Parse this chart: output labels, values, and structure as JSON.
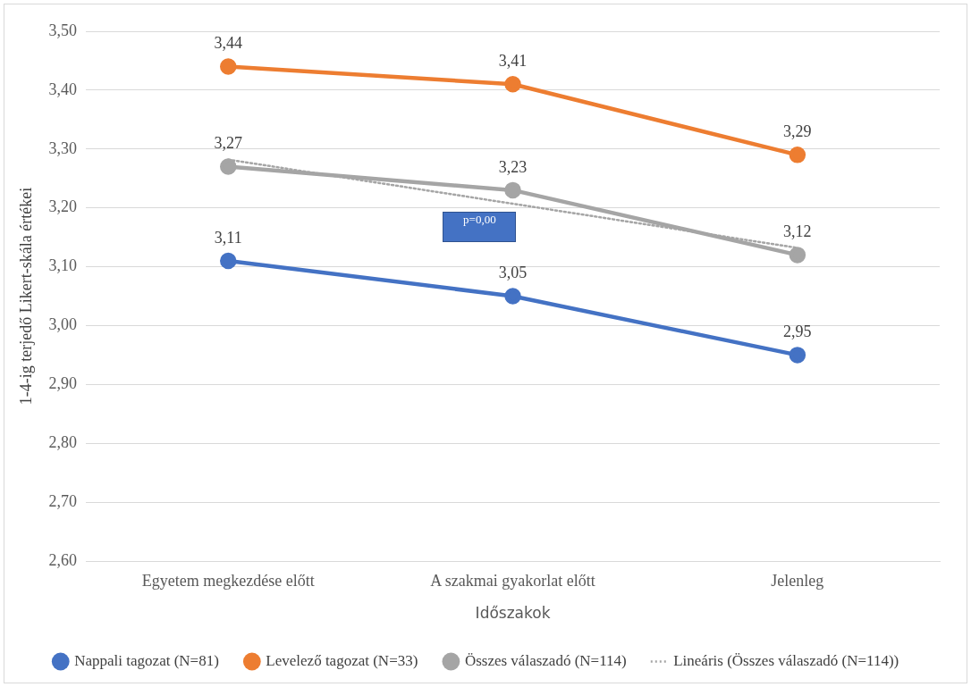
{
  "chart_data": {
    "type": "line",
    "xlabel": "Időszakok",
    "ylabel": "1-4-ig terjedő Likert-skála értékei",
    "categories": [
      "Egyetem megkezdése előtt",
      "A szakmai gyakorlat előtt",
      "Jelenleg"
    ],
    "series": [
      {
        "name": "Nappali tagozat (N=81)",
        "color": "#4472c4",
        "values": [
          3.11,
          3.05,
          2.95
        ],
        "value_labels": [
          "3,11",
          "3,05",
          "2,95"
        ],
        "marker": "circle",
        "line_style": "solid"
      },
      {
        "name": "Levelező tagozat (N=33)",
        "color": "#ed7d31",
        "values": [
          3.44,
          3.41,
          3.29
        ],
        "value_labels": [
          "3,44",
          "3,41",
          "3,29"
        ],
        "marker": "circle",
        "line_style": "solid"
      },
      {
        "name": "Összes válaszadó (N=114)",
        "color": "#a5a5a5",
        "values": [
          3.27,
          3.23,
          3.12
        ],
        "value_labels": [
          "3,27",
          "3,23",
          "3,12"
        ],
        "marker": "circle",
        "line_style": "solid"
      },
      {
        "name": "Lineáris (Összes válaszadó (N=114))",
        "color": "#a5a5a5",
        "values": [
          3.282,
          3.207,
          3.132
        ],
        "marker": "none",
        "line_style": "dotted"
      }
    ],
    "ylim": [
      2.6,
      3.5
    ],
    "yticks": [
      {
        "value": 2.6,
        "label": "2,60"
      },
      {
        "value": 2.7,
        "label": "2,70"
      },
      {
        "value": 2.8,
        "label": "2,80"
      },
      {
        "value": 2.9,
        "label": "2,90"
      },
      {
        "value": 3.0,
        "label": "3,00"
      },
      {
        "value": 3.1,
        "label": "3,10"
      },
      {
        "value": 3.2,
        "label": "3,20"
      },
      {
        "value": 3.3,
        "label": "3,30"
      },
      {
        "value": 3.4,
        "label": "3,40"
      },
      {
        "value": 3.5,
        "label": "3,50"
      }
    ],
    "grid": "y",
    "legend": "bottom",
    "annotations": [
      "p=0,00"
    ]
  }
}
